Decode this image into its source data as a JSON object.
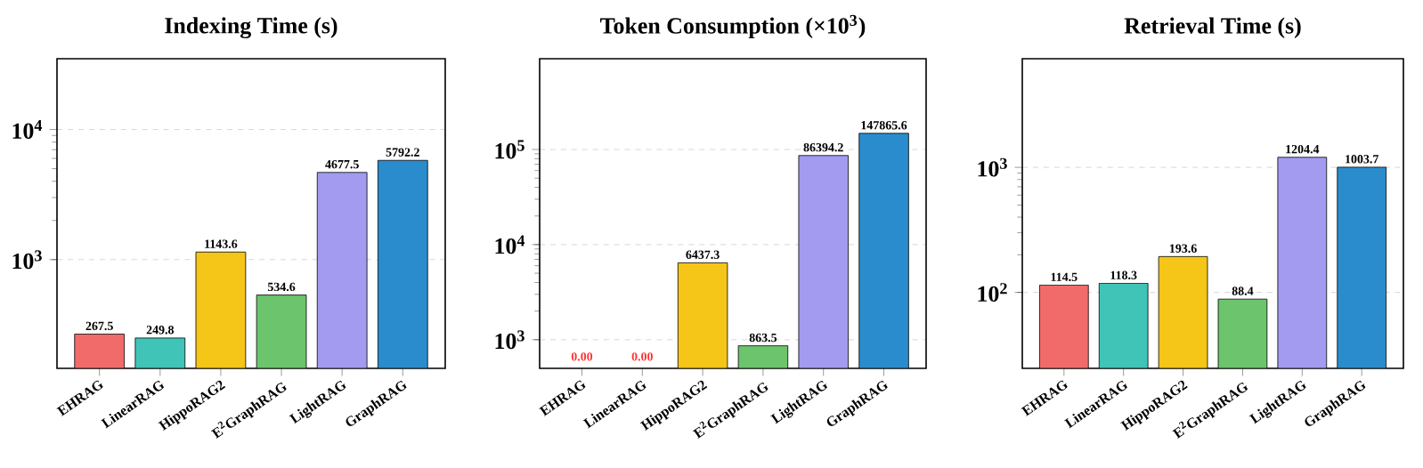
{
  "chart_data": [
    {
      "type": "bar",
      "title": "Indexing Time (s)",
      "categories": [
        "EHRAG",
        "LinearRAG",
        "HippoRAG2",
        "E$^{2}$GraphRAG",
        "LightRAG",
        "GraphRAG"
      ],
      "values": [
        267.5,
        249.8,
        1143.6,
        534.6,
        4677.5,
        5792.2
      ],
      "value_labels": [
        "267.5",
        "249.8",
        "1143.6",
        "534.6",
        "4677.5",
        "5792.2"
      ],
      "colors": [
        "#f26b6b",
        "#40c4b8",
        "#f5c518",
        "#6cc46c",
        "#a29bf0",
        "#2a8ccc"
      ],
      "log": "y",
      "ylim": [
        146,
        35000
      ],
      "yticks": [
        {
          "value": 1000,
          "label": "10$^{3}$"
        },
        {
          "value": 10000,
          "label": "10$^{4}$"
        }
      ],
      "grid": "y"
    },
    {
      "type": "bar",
      "title": "Token Consumption (×10$^{3}$)",
      "categories": [
        "EHRAG",
        "LinearRAG",
        "HippoRAG2",
        "E$^{2}$GraphRAG",
        "LightRAG",
        "GraphRAG"
      ],
      "values": [
        null,
        null,
        6437.3,
        863.5,
        86394.2,
        147865.6
      ],
      "value_labels": [
        "0.00",
        "0.00",
        "6437.3",
        "863.5",
        "86394.2",
        "147865.6"
      ],
      "colors": [
        "#f26b6b",
        "#40c4b8",
        "#f5c518",
        "#6cc46c",
        "#a29bf0",
        "#2a8ccc"
      ],
      "log": "y",
      "ylim": [
        500,
        900000
      ],
      "yticks": [
        {
          "value": 1000,
          "label": "10$^{3}$"
        },
        {
          "value": 10000,
          "label": "10$^{4}$"
        },
        {
          "value": 100000,
          "label": "10$^{5}$"
        }
      ],
      "grid": "y"
    },
    {
      "type": "bar",
      "title": "Retrieval Time (s)",
      "categories": [
        "EHRAG",
        "LinearRAG",
        "HippoRAG2",
        "E$^{2}$GraphRAG",
        "LightRAG",
        "GraphRAG"
      ],
      "values": [
        114.5,
        118.3,
        193.6,
        88.4,
        1204.4,
        1003.7
      ],
      "value_labels": [
        "114.5",
        "118.3",
        "193.6",
        "88.4",
        "1204.4",
        "1003.7"
      ],
      "colors": [
        "#f26b6b",
        "#40c4b8",
        "#f5c518",
        "#6cc46c",
        "#a29bf0",
        "#2a8ccc"
      ],
      "log": "y",
      "ylim": [
        24.7,
        7400
      ],
      "yticks": [
        {
          "value": 100,
          "label": "10$^{2}$"
        },
        {
          "value": 1000,
          "label": "10$^{3}$"
        }
      ],
      "grid": "y"
    }
  ]
}
